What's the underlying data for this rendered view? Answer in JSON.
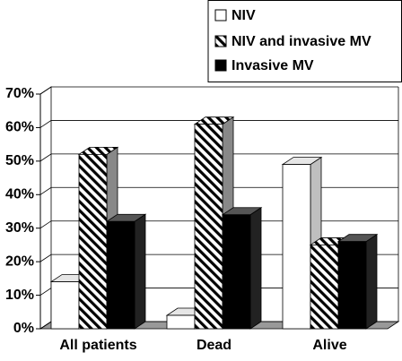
{
  "chart_data": {
    "type": "bar3d",
    "categories": [
      "All patients",
      "Dead",
      "Alive"
    ],
    "series": [
      {
        "name": "NIV",
        "color": "#ffffff",
        "values": [
          14,
          4,
          49
        ]
      },
      {
        "name": "NIV and invasive MV",
        "color": "#000000",
        "pattern": "diagonal",
        "values": [
          52,
          61,
          25
        ]
      },
      {
        "name": "Invasive MV",
        "color": "#000000",
        "values": [
          32,
          34,
          26
        ]
      }
    ],
    "ylim": [
      0,
      70
    ],
    "yticks": [
      {
        "value": 0,
        "label": "0%"
      },
      {
        "value": 10,
        "label": "10%"
      },
      {
        "value": 20,
        "label": "20%"
      },
      {
        "value": 30,
        "label": "30%"
      },
      {
        "value": 40,
        "label": "40%"
      },
      {
        "value": 50,
        "label": "50%"
      },
      {
        "value": 60,
        "label": "60%"
      },
      {
        "value": 70,
        "label": "70%"
      }
    ],
    "grid": true,
    "legend": "top-right"
  }
}
